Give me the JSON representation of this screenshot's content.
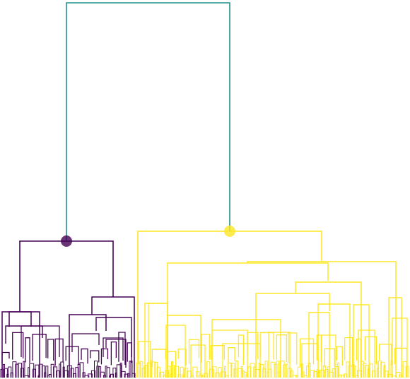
{
  "diagram": {
    "type": "dendrogram",
    "orientation": "top-down",
    "clusters": [
      {
        "name": "",
        "color": "#440154"
      },
      {
        "name": "",
        "color": "#fde725"
      }
    ],
    "root_link_color": "#21918c",
    "cluster_root_marker": "filled-circle",
    "labels": []
  }
}
